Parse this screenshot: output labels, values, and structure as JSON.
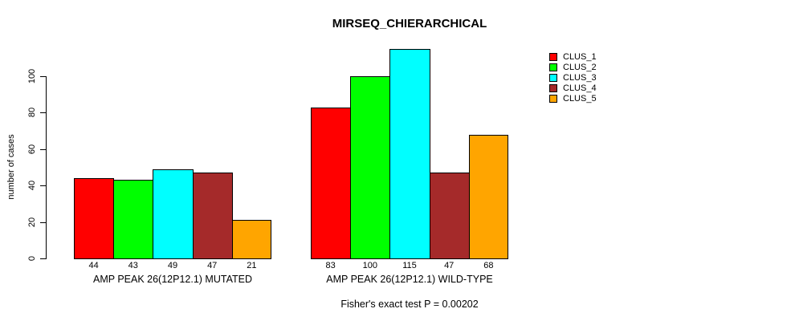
{
  "chart_data": {
    "type": "bar",
    "title": "MIRSEQ_CHIERARCHICAL",
    "ylabel": "number of cases",
    "xlabel": "",
    "annotation": "Fisher's exact test P = 0.00202",
    "ylim": [
      0,
      115
    ],
    "yticks": [
      0,
      20,
      40,
      60,
      80,
      100
    ],
    "grid": false,
    "legend_position": "right",
    "bar_value_labels_shown": true,
    "series": [
      {
        "name": "CLUS_1",
        "color": "#FF0000",
        "values": [
          44,
          83
        ]
      },
      {
        "name": "CLUS_2",
        "color": "#00FF00",
        "values": [
          43,
          100
        ]
      },
      {
        "name": "CLUS_3",
        "color": "#00FFFF",
        "values": [
          49,
          115
        ]
      },
      {
        "name": "CLUS_4",
        "color": "#A52A2A",
        "values": [
          47,
          47
        ]
      },
      {
        "name": "CLUS_5",
        "color": "#FFA500",
        "values": [
          21,
          68
        ]
      }
    ],
    "groups": [
      {
        "label": "AMP PEAK 26(12P12.1) MUTATED",
        "values": [
          44,
          43,
          49,
          47,
          21
        ]
      },
      {
        "label": "AMP PEAK 26(12P12.1) WILD-TYPE",
        "values": [
          83,
          100,
          115,
          47,
          68
        ]
      }
    ]
  }
}
